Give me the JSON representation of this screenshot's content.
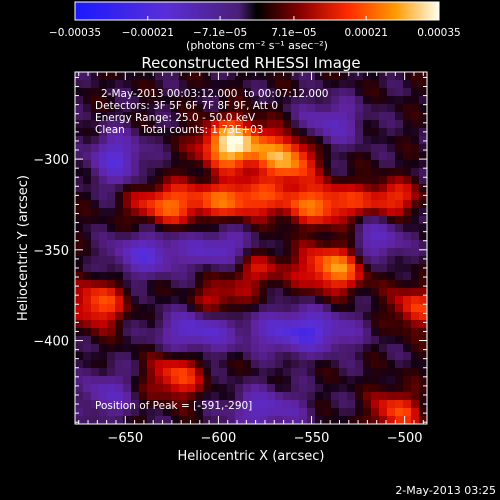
{
  "colorbar": {
    "ticks": [
      "-0.00035",
      "-0.00021",
      "-7.1e-05",
      "7.1e-05",
      "0.00021",
      "0.00035"
    ],
    "unit_label": "(photons cm⁻² s⁻¹ asec⁻²)",
    "range": [
      -0.00035,
      0.00035
    ]
  },
  "chart_data": {
    "type": "heatmap",
    "title": "Reconstructed RHESSI Image",
    "xlabel": "Heliocentric X (arcsec)",
    "ylabel": "Heliocentric Y (arcsec)",
    "xlim": [
      -677,
      -488
    ],
    "ylim": [
      -446,
      -252
    ],
    "x_ticks": [
      -650,
      -600,
      -550,
      -500
    ],
    "y_ticks": [
      -300,
      -350,
      -400
    ],
    "x_tick_labels": [
      "−650",
      "−600",
      "−550",
      "−500"
    ],
    "y_tick_labels": [
      "−300",
      "−350",
      "−400"
    ],
    "annotations": [
      "2-May-2013 00:03:12.000  to 00:07:12.000",
      "Detectors: 3F 5F 6F 7F 8F 9F, Att 0",
      "Energy Range: 25.0 - 50.0 keV",
      "Clean     Total counts: 1.73E+03"
    ],
    "peak_label": "Position of Peak = [-591,-290]",
    "peak": [
      -591,
      -290
    ],
    "sources": [
      {
        "x": -592,
        "y": -292,
        "amp": 1.0,
        "sx": 12,
        "sy": 9
      },
      {
        "x": -563,
        "y": -300,
        "amp": 0.75,
        "sx": 10,
        "sy": 9
      },
      {
        "x": -628,
        "y": -325,
        "amp": 0.55,
        "sx": 14,
        "sy": 8
      },
      {
        "x": -590,
        "y": -322,
        "amp": 0.6,
        "sx": 16,
        "sy": 7
      },
      {
        "x": -545,
        "y": -325,
        "amp": 0.6,
        "sx": 15,
        "sy": 8
      },
      {
        "x": -508,
        "y": -322,
        "amp": 0.45,
        "sx": 12,
        "sy": 7
      },
      {
        "x": -538,
        "y": -360,
        "amp": 0.7,
        "sx": 12,
        "sy": 9
      },
      {
        "x": -580,
        "y": -360,
        "amp": 0.35,
        "sx": 12,
        "sy": 8
      },
      {
        "x": -665,
        "y": -380,
        "amp": 0.55,
        "sx": 10,
        "sy": 9
      },
      {
        "x": -600,
        "y": -378,
        "amp": 0.35,
        "sx": 10,
        "sy": 7
      },
      {
        "x": -495,
        "y": -382,
        "amp": 0.45,
        "sx": 9,
        "sy": 9
      },
      {
        "x": -623,
        "y": -420,
        "amp": 0.5,
        "sx": 10,
        "sy": 9
      },
      {
        "x": -505,
        "y": -440,
        "amp": 0.5,
        "sx": 9,
        "sy": 9
      },
      {
        "x": -640,
        "y": -353,
        "amp": -0.55,
        "sx": 12,
        "sy": 8
      },
      {
        "x": -600,
        "y": -350,
        "amp": -0.5,
        "sx": 14,
        "sy": 7
      },
      {
        "x": -555,
        "y": -395,
        "amp": -0.7,
        "sx": 18,
        "sy": 8
      },
      {
        "x": -612,
        "y": -395,
        "amp": -0.55,
        "sx": 14,
        "sy": 8
      },
      {
        "x": -655,
        "y": -300,
        "amp": -0.55,
        "sx": 10,
        "sy": 10
      },
      {
        "x": -515,
        "y": -345,
        "amp": -0.45,
        "sx": 10,
        "sy": 9
      },
      {
        "x": -540,
        "y": -280,
        "amp": -0.4,
        "sx": 12,
        "sy": 9
      },
      {
        "x": -575,
        "y": -438,
        "amp": -0.45,
        "sx": 14,
        "sy": 8
      },
      {
        "x": -660,
        "y": -430,
        "amp": -0.4,
        "sx": 9,
        "sy": 9
      }
    ]
  },
  "footer": {
    "timestamp": "2-May-2013 03:25"
  }
}
